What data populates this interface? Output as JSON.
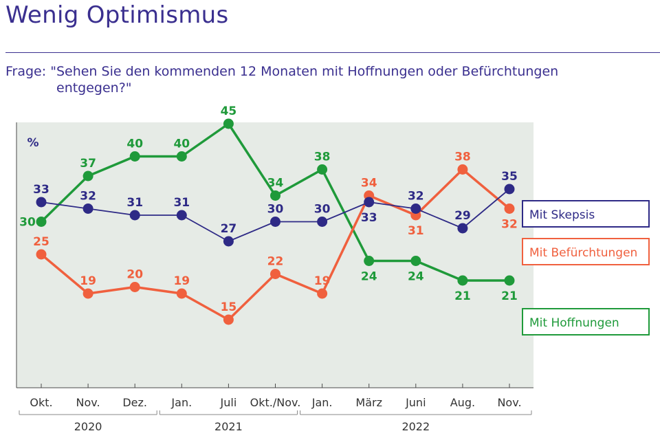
{
  "title": "Wenig Optimismus",
  "question": {
    "prefix": "Frage: ",
    "line1": "\"Sehen Sie den kommenden 12 Monaten mit Hoffnungen oder Befürchtungen",
    "line2": "entgegen?\""
  },
  "chart_data": {
    "type": "line",
    "unit_label": "%",
    "categories": [
      "Okt.",
      "Nov.",
      "Dez.",
      "Jan.",
      "Juli",
      "Okt./Nov.",
      "Jan.",
      "März",
      "Juni",
      "Aug.",
      "Nov."
    ],
    "year_groups": [
      {
        "label": "2020",
        "from": 0,
        "to": 2
      },
      {
        "label": "2021",
        "from": 3,
        "to": 5
      },
      {
        "label": "2022",
        "from": 6,
        "to": 10
      }
    ],
    "ylim": [
      5,
      50
    ],
    "series": [
      {
        "name": "Mit Skepsis",
        "color": "#2e2a86",
        "values": [
          33,
          32,
          31,
          31,
          27,
          30,
          30,
          33,
          32,
          29,
          35
        ]
      },
      {
        "name": "Mit Befürchtungen",
        "color": "#f0603e",
        "values": [
          25,
          19,
          20,
          19,
          15,
          22,
          19,
          34,
          31,
          38,
          32
        ]
      },
      {
        "name": "Mit Hoffnungen",
        "color": "#1f9a3a",
        "values": [
          30,
          37,
          40,
          40,
          45,
          34,
          38,
          24,
          24,
          21,
          21
        ]
      }
    ],
    "background": "#e6ebe6"
  }
}
